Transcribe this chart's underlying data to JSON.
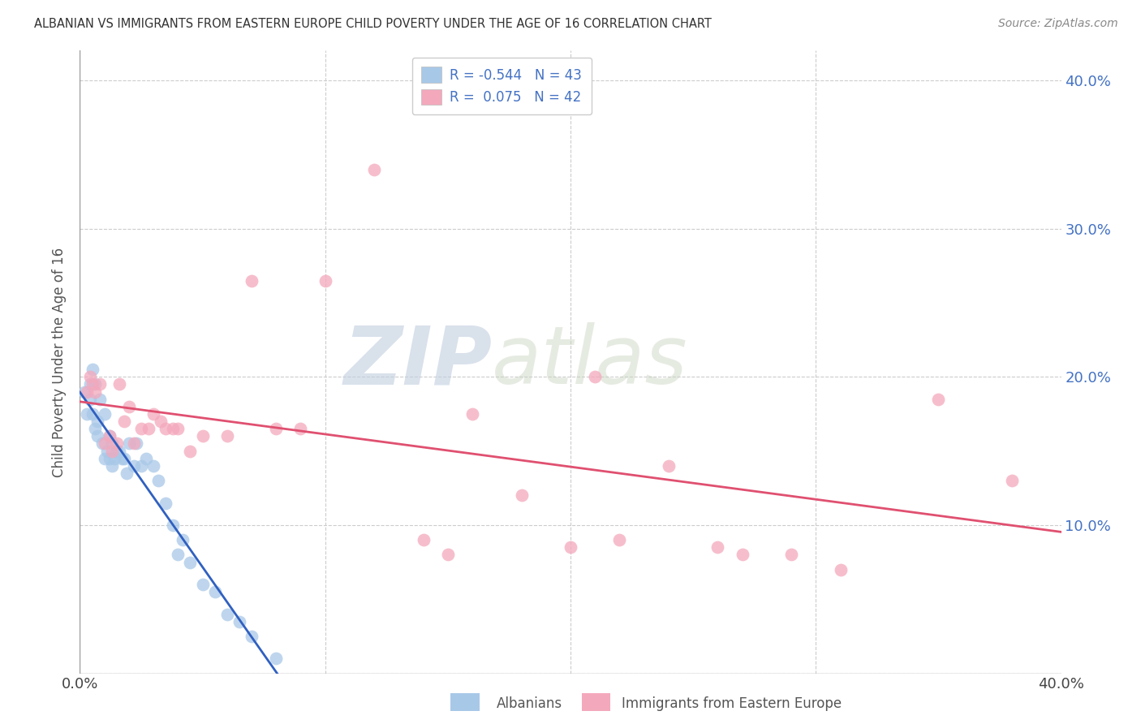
{
  "title": "ALBANIAN VS IMMIGRANTS FROM EASTERN EUROPE CHILD POVERTY UNDER THE AGE OF 16 CORRELATION CHART",
  "source": "Source: ZipAtlas.com",
  "ylabel": "Child Poverty Under the Age of 16",
  "xlim": [
    0.0,
    0.4
  ],
  "ylim": [
    0.0,
    0.42
  ],
  "ytick_vals": [
    0.0,
    0.1,
    0.2,
    0.3,
    0.4
  ],
  "ytick_labels_right": [
    "",
    "10.0%",
    "20.0%",
    "30.0%",
    "40.0%"
  ],
  "xtick_vals": [
    0.0,
    0.1,
    0.2,
    0.3,
    0.4
  ],
  "xtick_labels": [
    "0.0%",
    "",
    "",
    "",
    "40.0%"
  ],
  "legend_r_albanian": "-0.544",
  "legend_n_albanian": "43",
  "legend_r_eastern": "0.075",
  "legend_n_eastern": "42",
  "albanian_color": "#a8c8e8",
  "eastern_color": "#f4a8bc",
  "albanian_line_color": "#3060c0",
  "eastern_line_color": "#e05070",
  "watermark_zip": "ZIP",
  "watermark_atlas": "atlas",
  "albanian_scatter_x": [
    0.002,
    0.003,
    0.004,
    0.004,
    0.005,
    0.005,
    0.006,
    0.006,
    0.007,
    0.007,
    0.008,
    0.009,
    0.01,
    0.01,
    0.011,
    0.012,
    0.012,
    0.013,
    0.013,
    0.014,
    0.015,
    0.016,
    0.017,
    0.018,
    0.019,
    0.02,
    0.022,
    0.023,
    0.025,
    0.027,
    0.03,
    0.032,
    0.035,
    0.038,
    0.04,
    0.042,
    0.045,
    0.05,
    0.055,
    0.06,
    0.065,
    0.07,
    0.08
  ],
  "albanian_scatter_y": [
    0.19,
    0.175,
    0.195,
    0.185,
    0.205,
    0.175,
    0.195,
    0.165,
    0.17,
    0.16,
    0.185,
    0.155,
    0.175,
    0.145,
    0.15,
    0.16,
    0.145,
    0.155,
    0.14,
    0.145,
    0.15,
    0.15,
    0.145,
    0.145,
    0.135,
    0.155,
    0.14,
    0.155,
    0.14,
    0.145,
    0.14,
    0.13,
    0.115,
    0.1,
    0.08,
    0.09,
    0.075,
    0.06,
    0.055,
    0.04,
    0.035,
    0.025,
    0.01
  ],
  "eastern_scatter_x": [
    0.003,
    0.004,
    0.005,
    0.006,
    0.008,
    0.01,
    0.012,
    0.013,
    0.015,
    0.016,
    0.018,
    0.02,
    0.022,
    0.025,
    0.028,
    0.03,
    0.033,
    0.035,
    0.038,
    0.04,
    0.045,
    0.05,
    0.06,
    0.07,
    0.08,
    0.09,
    0.1,
    0.12,
    0.14,
    0.15,
    0.16,
    0.18,
    0.2,
    0.21,
    0.22,
    0.24,
    0.26,
    0.27,
    0.29,
    0.31,
    0.35,
    0.38
  ],
  "eastern_scatter_y": [
    0.19,
    0.2,
    0.195,
    0.19,
    0.195,
    0.155,
    0.16,
    0.15,
    0.155,
    0.195,
    0.17,
    0.18,
    0.155,
    0.165,
    0.165,
    0.175,
    0.17,
    0.165,
    0.165,
    0.165,
    0.15,
    0.16,
    0.16,
    0.265,
    0.165,
    0.165,
    0.265,
    0.34,
    0.09,
    0.08,
    0.175,
    0.12,
    0.085,
    0.2,
    0.09,
    0.14,
    0.085,
    0.08,
    0.08,
    0.07,
    0.185,
    0.13
  ],
  "background_color": "#ffffff",
  "grid_color": "#cccccc"
}
